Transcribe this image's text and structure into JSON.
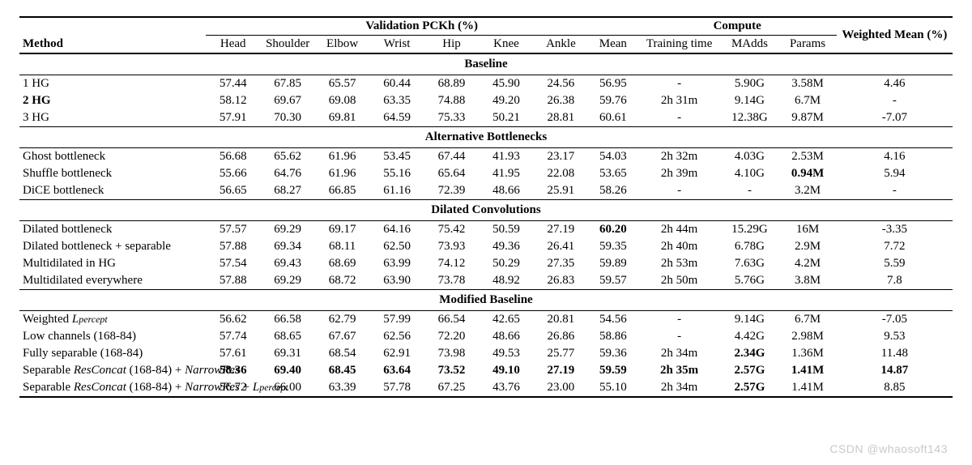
{
  "headers": {
    "group_val": "Validation PCKh (%)",
    "group_compute": "Compute",
    "weighted_mean": "Weighted Mean (%)",
    "method": "Method",
    "val_cols": [
      "Head",
      "Shoulder",
      "Elbow",
      "Wrist",
      "Hip",
      "Knee",
      "Ankle",
      "Mean"
    ],
    "compute_cols": [
      "Training time",
      "MAdds",
      "Params"
    ]
  },
  "sections": [
    {
      "title": "Baseline",
      "rows": [
        {
          "method_html": "1 HG",
          "bold_method": false,
          "vals": [
            "57.44",
            "67.85",
            "65.57",
            "60.44",
            "68.89",
            "45.90",
            "24.56",
            "56.95"
          ],
          "bold_vals": [],
          "compute": [
            "-",
            "5.90G",
            "3.58M"
          ],
          "bold_compute": [],
          "wm": "4.46",
          "bold_wm": false
        },
        {
          "method_html": "2 HG",
          "bold_method": true,
          "vals": [
            "58.12",
            "69.67",
            "69.08",
            "63.35",
            "74.88",
            "49.20",
            "26.38",
            "59.76"
          ],
          "bold_vals": [],
          "compute": [
            "2h 31m",
            "9.14G",
            "6.7M"
          ],
          "bold_compute": [],
          "wm": "-",
          "bold_wm": false
        },
        {
          "method_html": "3 HG",
          "bold_method": false,
          "vals": [
            "57.91",
            "70.30",
            "69.81",
            "64.59",
            "75.33",
            "50.21",
            "28.81",
            "60.61"
          ],
          "bold_vals": [],
          "compute": [
            "-",
            "12.38G",
            "9.87M"
          ],
          "bold_compute": [],
          "wm": "-7.07",
          "bold_wm": false
        }
      ]
    },
    {
      "title": "Alternative Bottlenecks",
      "rows": [
        {
          "method_html": "Ghost bottleneck",
          "bold_method": false,
          "vals": [
            "56.68",
            "65.62",
            "61.96",
            "53.45",
            "67.44",
            "41.93",
            "23.17",
            "54.03"
          ],
          "bold_vals": [],
          "compute": [
            "2h 32m",
            "4.03G",
            "2.53M"
          ],
          "bold_compute": [],
          "wm": "4.16",
          "bold_wm": false
        },
        {
          "method_html": "Shuffle bottleneck",
          "bold_method": false,
          "vals": [
            "55.66",
            "64.76",
            "61.96",
            "55.16",
            "65.64",
            "41.95",
            "22.08",
            "53.65"
          ],
          "bold_vals": [],
          "compute": [
            "2h 39m",
            "4.10G",
            "0.94M"
          ],
          "bold_compute": [
            2
          ],
          "wm": "5.94",
          "bold_wm": false
        },
        {
          "method_html": "DiCE bottleneck",
          "bold_method": false,
          "vals": [
            "56.65",
            "68.27",
            "66.85",
            "61.16",
            "72.39",
            "48.66",
            "25.91",
            "58.26"
          ],
          "bold_vals": [],
          "compute": [
            "-",
            "-",
            "3.2M"
          ],
          "bold_compute": [],
          "wm": "-",
          "bold_wm": false
        }
      ]
    },
    {
      "title": "Dilated Convolutions",
      "rows": [
        {
          "method_html": "Dilated bottleneck",
          "bold_method": false,
          "vals": [
            "57.57",
            "69.29",
            "69.17",
            "64.16",
            "75.42",
            "50.59",
            "27.19",
            "60.20"
          ],
          "bold_vals": [
            7
          ],
          "compute": [
            "2h 44m",
            "15.29G",
            "16M"
          ],
          "bold_compute": [],
          "wm": "-3.35",
          "bold_wm": false
        },
        {
          "method_html": "Dilated bottleneck + separable",
          "bold_method": false,
          "vals": [
            "57.88",
            "69.34",
            "68.11",
            "62.50",
            "73.93",
            "49.36",
            "26.41",
            "59.35"
          ],
          "bold_vals": [],
          "compute": [
            "2h 40m",
            "6.78G",
            "2.9M"
          ],
          "bold_compute": [],
          "wm": "7.72",
          "bold_wm": false
        },
        {
          "method_html": "Multidilated in HG",
          "bold_method": false,
          "vals": [
            "57.54",
            "69.43",
            "68.69",
            "63.99",
            "74.12",
            "50.29",
            "27.35",
            "59.89"
          ],
          "bold_vals": [],
          "compute": [
            "2h 53m",
            "7.63G",
            "4.2M"
          ],
          "bold_compute": [],
          "wm": "5.59",
          "bold_wm": false
        },
        {
          "method_html": "Multidilated everywhere",
          "bold_method": false,
          "vals": [
            "57.88",
            "69.29",
            "68.72",
            "63.90",
            "73.78",
            "48.92",
            "26.83",
            "59.57"
          ],
          "bold_vals": [],
          "compute": [
            "2h 50m",
            "5.76G",
            "3.8M"
          ],
          "bold_compute": [],
          "wm": "7.8",
          "bold_wm": false
        }
      ]
    },
    {
      "title": "Modified Baseline",
      "rows": [
        {
          "method_html": "Weighted <i>L</i><span class=\"italic-sub\">percept</span>",
          "bold_method": false,
          "vals": [
            "56.62",
            "66.58",
            "62.79",
            "57.99",
            "66.54",
            "42.65",
            "20.81",
            "54.56"
          ],
          "bold_vals": [],
          "compute": [
            "-",
            "9.14G",
            "6.7M"
          ],
          "bold_compute": [],
          "wm": "-7.05",
          "bold_wm": false
        },
        {
          "method_html": "Low channels (168-84)",
          "bold_method": false,
          "vals": [
            "57.74",
            "68.65",
            "67.67",
            "62.56",
            "72.20",
            "48.66",
            "26.86",
            "58.86"
          ],
          "bold_vals": [],
          "compute": [
            "-",
            "4.42G",
            "2.98M"
          ],
          "bold_compute": [],
          "wm": "9.53",
          "bold_wm": false
        },
        {
          "method_html": "Fully separable (168-84)",
          "bold_method": false,
          "vals": [
            "57.61",
            "69.31",
            "68.54",
            "62.91",
            "73.98",
            "49.53",
            "25.77",
            "59.36"
          ],
          "bold_vals": [],
          "compute": [
            "2h 34m",
            "2.34G",
            "1.36M"
          ],
          "bold_compute": [
            1
          ],
          "wm": "11.48",
          "bold_wm": false
        },
        {
          "method_html": "Separable <i>ResConcat</i> (168-84) + <i>NarrowRes</i>",
          "bold_method": false,
          "vals": [
            "58.36",
            "69.40",
            "68.45",
            "63.64",
            "73.52",
            "49.10",
            "27.19",
            "59.59"
          ],
          "bold_vals": [
            0,
            1,
            2,
            3,
            4,
            5,
            6,
            7
          ],
          "compute": [
            "2h 35m",
            "2.57G",
            "1.41M"
          ],
          "bold_compute": [
            0,
            1,
            2
          ],
          "wm": "14.87",
          "bold_wm": true
        },
        {
          "method_html": "Separable <i>ResConcat</i> (168-84) + <i>NarrowRes</i> + <i>L</i><span class=\"italic-sub\">percept</span>",
          "bold_method": false,
          "vals": [
            "56.72",
            "66.00",
            "63.39",
            "57.78",
            "67.25",
            "43.76",
            "23.00",
            "55.10"
          ],
          "bold_vals": [],
          "compute": [
            "2h 34m",
            "2.57G",
            "1.41M"
          ],
          "bold_compute": [
            1
          ],
          "wm": "8.85",
          "bold_wm": false
        }
      ]
    }
  ],
  "watermark": "CSDN @whaosoft143",
  "style": {
    "font_family": "Times New Roman",
    "font_size_pt": 12,
    "bg_color": "#ffffff",
    "text_color": "#000000",
    "rule_color": "#000000",
    "watermark_color": "#c9c9c9"
  }
}
